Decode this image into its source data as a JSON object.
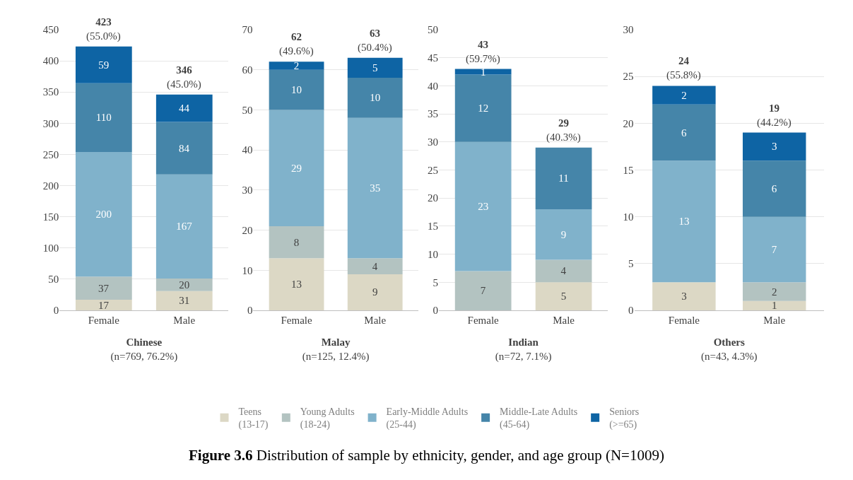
{
  "chart_data": [
    {
      "type": "bar",
      "stacked": true,
      "categories": [
        "Female",
        "Male"
      ],
      "xlabel": "Chinese\n(n=769, 76.2%)",
      "ylim": [
        0,
        450
      ],
      "yticks": [
        0,
        50,
        100,
        150,
        200,
        250,
        300,
        350,
        400,
        450
      ],
      "grid": "y",
      "legend": "bottom",
      "series": [
        {
          "name": "Teens\n(13-17)",
          "color": "#dcd8c5",
          "values": [
            17,
            31
          ],
          "value_labels": [
            "17",
            "31"
          ]
        },
        {
          "name": "Young Adults\n(18-24)",
          "color": "#b3c3c1",
          "values": [
            37,
            20
          ],
          "value_labels": [
            "37",
            "20"
          ]
        },
        {
          "name": "Early-Middle Adults\n(25-44)",
          "color": "#80b2cb",
          "values": [
            200,
            167
          ],
          "value_labels": [
            "200",
            "167"
          ]
        },
        {
          "name": "Middle-Late Adults\n(45-64)",
          "color": "#4585a9",
          "values": [
            110,
            84
          ],
          "value_labels": [
            "110",
            "84"
          ]
        },
        {
          "name": "Seniors\n(>=65)",
          "color": "#0e64a4",
          "values": [
            59,
            44
          ],
          "value_labels": [
            "59",
            "44"
          ]
        }
      ],
      "totals": [
        "423\n(55.0%)",
        "346\n(45.0%)"
      ],
      "annotations": [
        "Figure 3.6 Distribution of sample by ethnicity, gender, and age group (N=1009)"
      ]
    },
    {
      "type": "bar",
      "stacked": true,
      "categories": [
        "Female",
        "Male"
      ],
      "xlabel": "Malay\n(n=125, 12.4%)",
      "ylim": [
        0,
        70
      ],
      "yticks": [
        0,
        10,
        20,
        30,
        40,
        50,
        60,
        70
      ],
      "grid": "y",
      "series": [
        {
          "color": "#dcd8c5",
          "values": [
            13,
            9
          ],
          "value_labels": [
            "13",
            "9"
          ]
        },
        {
          "color": "#b3c3c1",
          "values": [
            8,
            4
          ],
          "value_labels": [
            "8",
            "4"
          ]
        },
        {
          "color": "#80b2cb",
          "values": [
            29,
            35
          ],
          "value_labels": [
            "29",
            "35"
          ]
        },
        {
          "color": "#4585a9",
          "values": [
            10,
            10
          ],
          "value_labels": [
            "10",
            "10"
          ]
        },
        {
          "color": "#0e64a4",
          "values": [
            2,
            5
          ],
          "value_labels": [
            "2",
            "5"
          ]
        }
      ],
      "totals": [
        "62\n(49.6%)",
        "63\n(50.4%)"
      ]
    },
    {
      "type": "bar",
      "stacked": true,
      "categories": [
        "Female",
        "Male"
      ],
      "xlabel": "Indian\n(n=72, 7.1%)",
      "ylim": [
        0,
        50
      ],
      "yticks": [
        0,
        5,
        10,
        15,
        20,
        25,
        30,
        35,
        40,
        45,
        50
      ],
      "grid": "y",
      "series": [
        {
          "color": "#dcd8c5",
          "values": [
            0,
            5
          ],
          "value_labels": [
            null,
            "5"
          ]
        },
        {
          "color": "#b3c3c1",
          "values": [
            7,
            4
          ],
          "value_labels": [
            "7",
            "4"
          ]
        },
        {
          "color": "#80b2cb",
          "values": [
            23,
            9
          ],
          "value_labels": [
            "23",
            "9"
          ]
        },
        {
          "color": "#4585a9",
          "values": [
            12,
            11
          ],
          "value_labels": [
            "12",
            "11"
          ]
        },
        {
          "color": "#0e64a4",
          "values": [
            1,
            0
          ],
          "value_labels": [
            "1",
            null
          ]
        }
      ],
      "totals": [
        "43\n(59.7%)",
        "29\n(40.3%)"
      ]
    },
    {
      "type": "bar",
      "stacked": true,
      "categories": [
        "Female",
        "Male"
      ],
      "xlabel": "Others\n(n=43, 4.3%)",
      "ylim": [
        0,
        30
      ],
      "yticks": [
        0,
        5,
        10,
        15,
        20,
        25,
        30
      ],
      "grid": "y",
      "series": [
        {
          "color": "#dcd8c5",
          "values": [
            3,
            1
          ],
          "value_labels": [
            "3",
            "1"
          ]
        },
        {
          "color": "#b3c3c1",
          "values": [
            0,
            2
          ],
          "value_labels": [
            null,
            "2"
          ]
        },
        {
          "color": "#80b2cb",
          "values": [
            13,
            7
          ],
          "value_labels": [
            "13",
            "7"
          ]
        },
        {
          "color": "#4585a9",
          "values": [
            6,
            6
          ],
          "value_labels": [
            "6",
            "6"
          ]
        },
        {
          "color": "#0e64a4",
          "values": [
            2,
            3
          ],
          "value_labels": [
            "2",
            "3"
          ]
        }
      ],
      "totals": [
        "24\n(55.8%)",
        "19\n(44.2%)"
      ]
    }
  ]
}
